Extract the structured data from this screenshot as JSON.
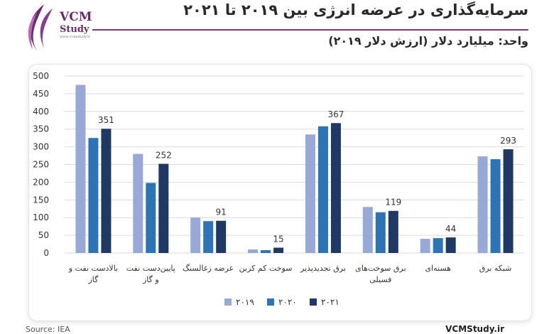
{
  "header": {
    "title": "سرمایه‌گذاری در عرضه انرژی بین ۲۰۱۹ تا ۲۰۲۱",
    "unit": "واحد: میلیارد دلار (ارزش دلار ۲۰۱۹)"
  },
  "logo": {
    "name": "VCM",
    "name2": "Study",
    "site": "www.vcmstudy.ir"
  },
  "footer": {
    "site": "VCMStudy.ir",
    "source": "Source: IEA"
  },
  "colors": {
    "s2019": "#98a9d8",
    "s2020": "#2e74b5",
    "s2021": "#1f3864",
    "grid": "#d9d9d9",
    "brand": "#6b2a6e"
  },
  "chart_data": {
    "type": "bar",
    "ylim": [
      0,
      500
    ],
    "yticks": [
      "0",
      "50",
      "100",
      "150",
      "200",
      "250",
      "300",
      "350",
      "400",
      "450",
      "500"
    ],
    "grid": true,
    "legend_position": "bottom",
    "categories": [
      [
        "بالادست نفت و",
        "گاز"
      ],
      [
        "پایین‌دست نفت",
        "و گاز"
      ],
      [
        "عرضه زغالسنگ"
      ],
      [
        "سوخت کم کربن"
      ],
      [
        "برق تجدیدپذیر"
      ],
      [
        "برق سوخت‌های",
        "فسیلی"
      ],
      [
        "هسته‌ای"
      ],
      [
        "شبکه برق"
      ]
    ],
    "series": [
      {
        "name": "۲۰۱۹",
        "values": [
          475,
          280,
          100,
          10,
          335,
          130,
          40,
          273
        ]
      },
      {
        "name": "۲۰۲۰",
        "values": [
          325,
          198,
          90,
          8,
          358,
          115,
          42,
          265
        ]
      },
      {
        "name": "۲۰۲۱",
        "values": [
          351,
          252,
          91,
          15,
          367,
          119,
          44,
          293
        ]
      }
    ],
    "data_labels": [
      "351",
      "252",
      "91",
      "15",
      "367",
      "119",
      "44",
      "293"
    ]
  }
}
